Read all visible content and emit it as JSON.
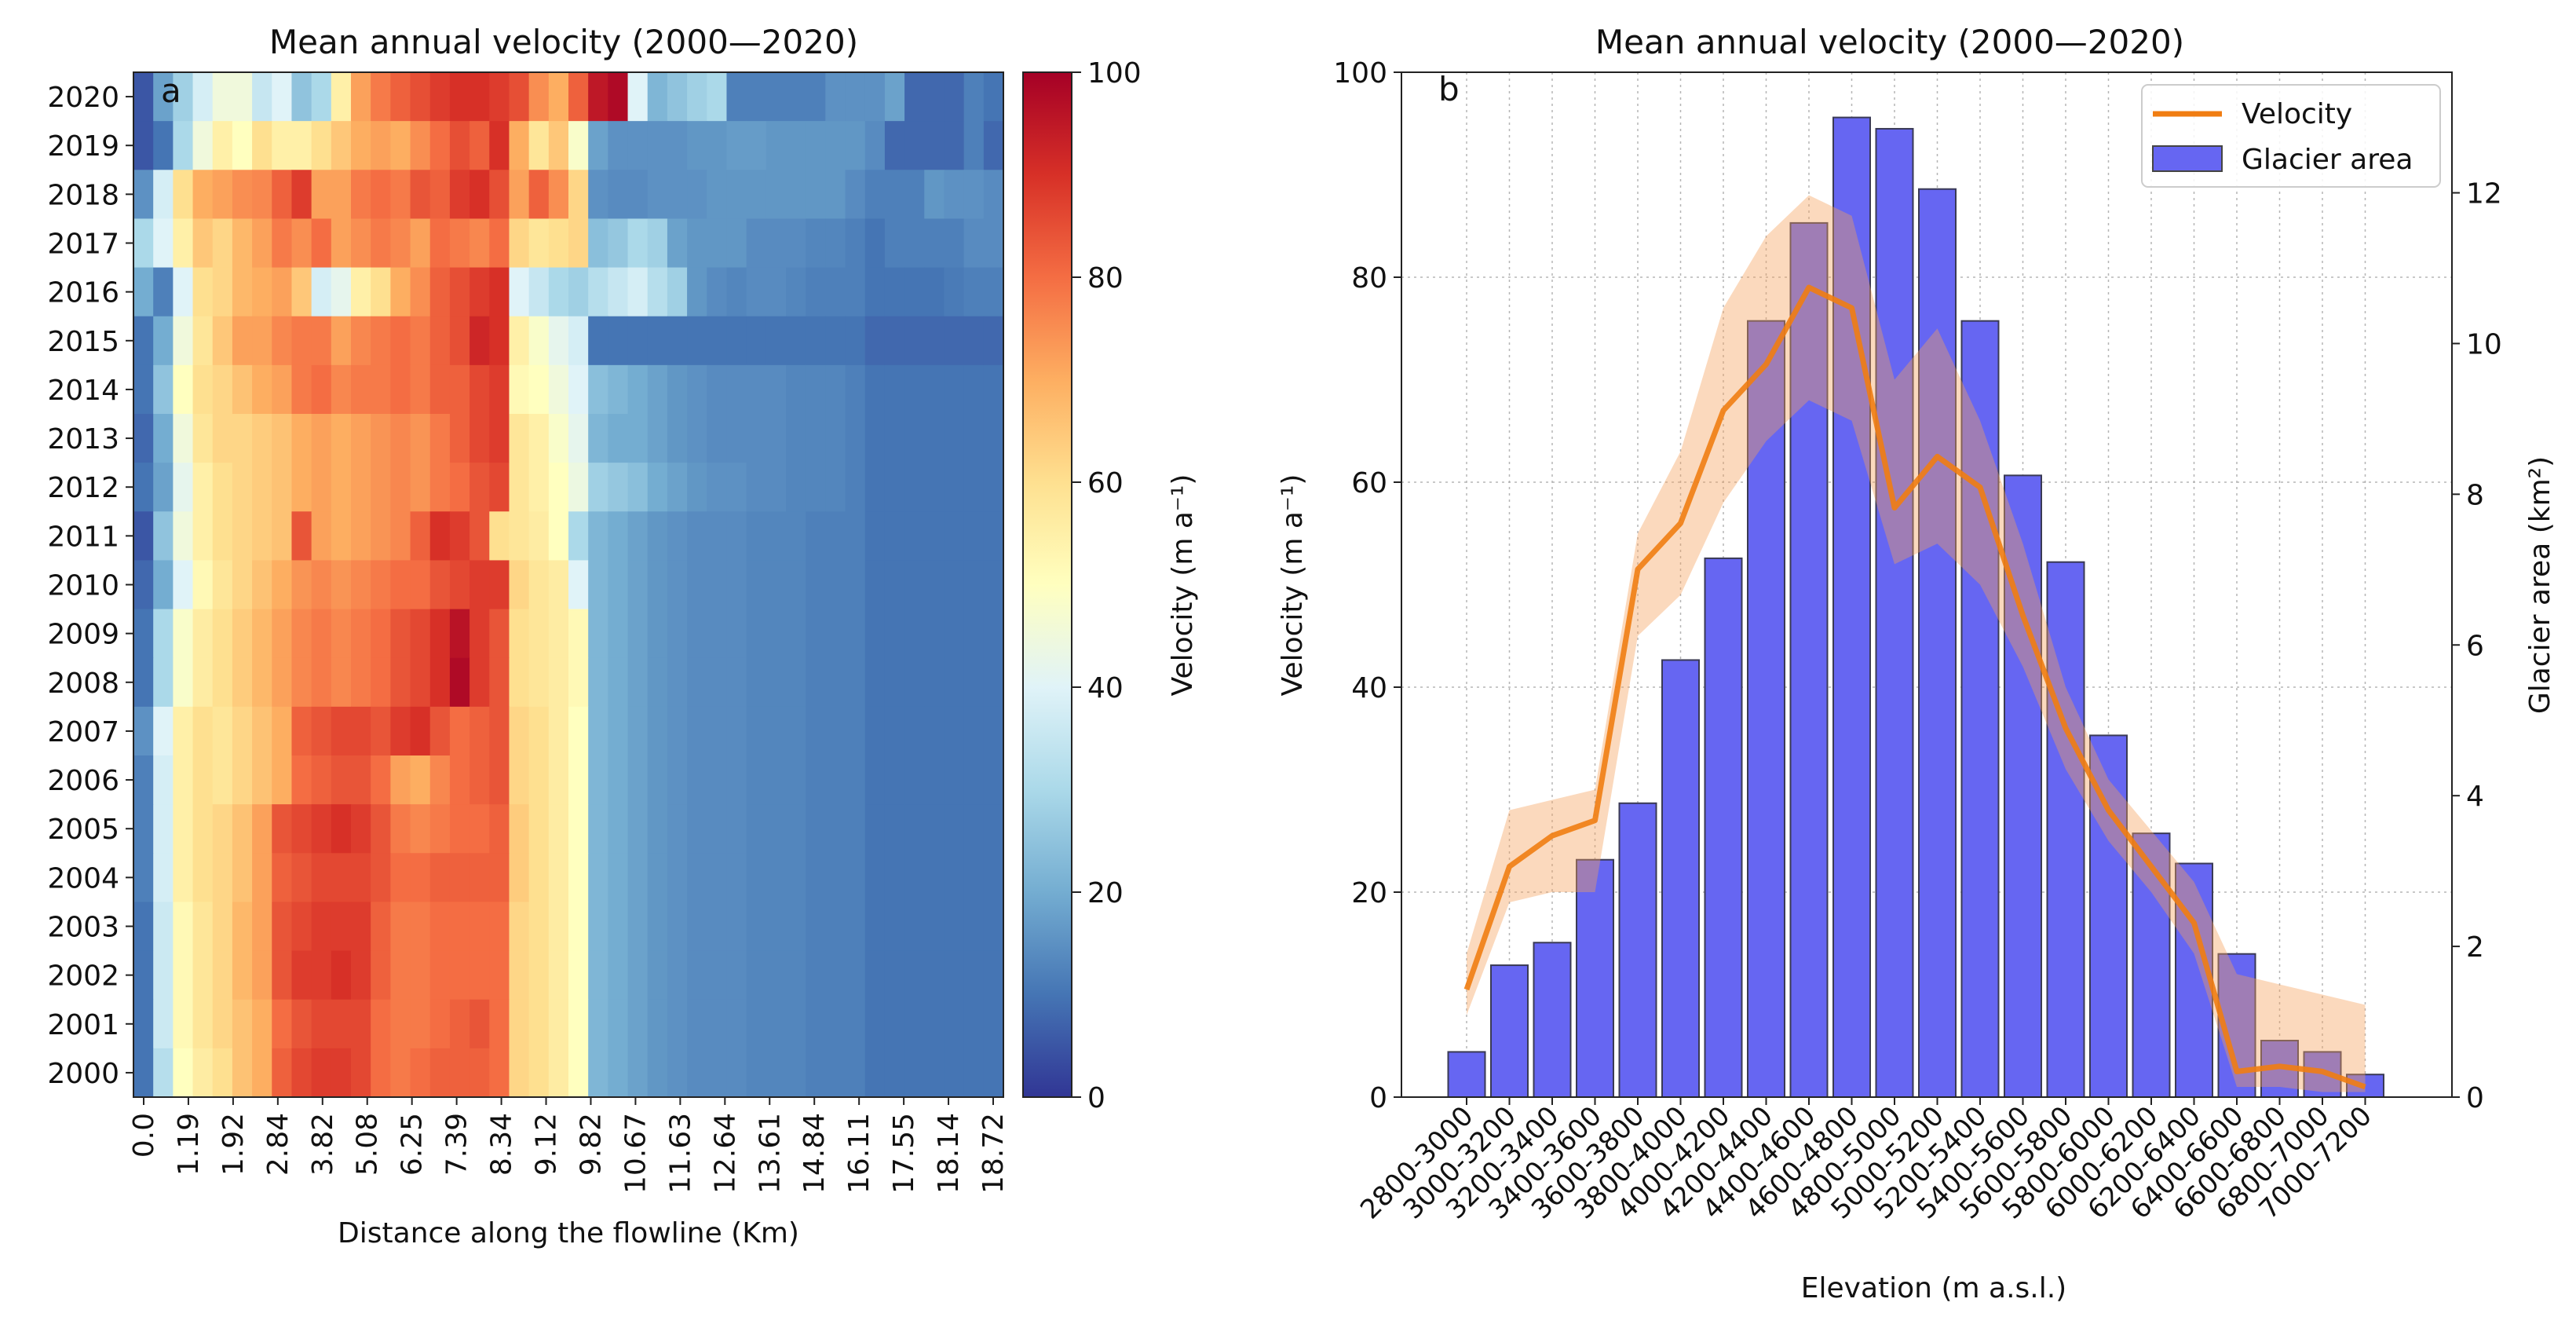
{
  "chart_data": [
    {
      "panel_label": "a",
      "type": "heatmap",
      "title": "Mean annual velocity (2000—2020)",
      "xlabel": "Distance along the flowline (Km)",
      "y_categories": [
        "2020",
        "2019",
        "2018",
        "2017",
        "2016",
        "2015",
        "2014",
        "2013",
        "2012",
        "2011",
        "2010",
        "2009",
        "2008",
        "2007",
        "2006",
        "2005",
        "2004",
        "2003",
        "2002",
        "2001",
        "2000"
      ],
      "x_tick_labels": [
        "0.0",
        "1.19",
        "1.92",
        "2.84",
        "3.82",
        "5.08",
        "6.25",
        "7.39",
        "8.34",
        "9.12",
        "9.82",
        "10.67",
        "11.63",
        "12.64",
        "13.61",
        "14.84",
        "16.11",
        "17.55",
        "18.14",
        "18.72"
      ],
      "x_bins": 44,
      "colorbar": {
        "label": "Velocity (m a⁻¹)",
        "range": [
          0,
          100
        ],
        "ticks": [
          "0",
          "20",
          "40",
          "60",
          "80",
          "100"
        ]
      },
      "values": [
        [
          5,
          18,
          28,
          38,
          45,
          45,
          35,
          40,
          25,
          30,
          55,
          72,
          78,
          82,
          85,
          88,
          90,
          90,
          88,
          85,
          75,
          70,
          82,
          95,
          98,
          40,
          22,
          25,
          28,
          30,
          12,
          12,
          12,
          12,
          12,
          15,
          15,
          15,
          18,
          8,
          8,
          8,
          12,
          10
        ],
        [
          5,
          10,
          30,
          45,
          55,
          50,
          60,
          55,
          55,
          60,
          65,
          70,
          72,
          70,
          75,
          80,
          85,
          82,
          90,
          70,
          58,
          65,
          48,
          18,
          15,
          15,
          15,
          15,
          16,
          16,
          17,
          17,
          16,
          16,
          16,
          16,
          16,
          14,
          8,
          8,
          8,
          8,
          12,
          8
        ],
        [
          15,
          38,
          60,
          70,
          72,
          75,
          76,
          82,
          88,
          72,
          72,
          78,
          80,
          78,
          84,
          82,
          88,
          90,
          85,
          72,
          82,
          75,
          62,
          15,
          14,
          14,
          15,
          15,
          15,
          16,
          16,
          16,
          16,
          16,
          16,
          16,
          14,
          12,
          12,
          12,
          16,
          15,
          15,
          14
        ],
        [
          30,
          40,
          55,
          65,
          62,
          68,
          72,
          78,
          75,
          80,
          72,
          75,
          78,
          76,
          72,
          80,
          78,
          76,
          80,
          62,
          58,
          60,
          62,
          24,
          26,
          30,
          28,
          18,
          16,
          16,
          16,
          14,
          14,
          14,
          13,
          13,
          12,
          10,
          12,
          12,
          12,
          12,
          14,
          14
        ],
        [
          20,
          12,
          40,
          60,
          62,
          68,
          70,
          72,
          65,
          38,
          42,
          55,
          60,
          70,
          75,
          82,
          85,
          88,
          90,
          40,
          35,
          30,
          28,
          32,
          35,
          38,
          32,
          28,
          16,
          14,
          13,
          14,
          14,
          13,
          12,
          12,
          12,
          10,
          10,
          10,
          10,
          11,
          12,
          12
        ],
        [
          10,
          20,
          45,
          58,
          65,
          72,
          72,
          76,
          78,
          78,
          72,
          76,
          78,
          80,
          78,
          82,
          85,
          92,
          90,
          55,
          48,
          42,
          38,
          10,
          10,
          10,
          10,
          10,
          10,
          10,
          10,
          10,
          10,
          10,
          10,
          10,
          10,
          8,
          8,
          8,
          8,
          8,
          8,
          8
        ],
        [
          10,
          25,
          50,
          60,
          62,
          66,
          70,
          72,
          78,
          80,
          76,
          78,
          78,
          80,
          78,
          82,
          82,
          86,
          88,
          52,
          50,
          45,
          40,
          24,
          22,
          20,
          18,
          16,
          15,
          14,
          14,
          14,
          14,
          13,
          13,
          13,
          12,
          10,
          10,
          10,
          10,
          10,
          10,
          10
        ],
        [
          8,
          20,
          45,
          58,
          62,
          62,
          64,
          66,
          70,
          72,
          70,
          72,
          74,
          76,
          74,
          78,
          82,
          86,
          88,
          58,
          55,
          48,
          42,
          22,
          20,
          20,
          18,
          16,
          15,
          14,
          14,
          14,
          14,
          13,
          13,
          13,
          12,
          10,
          10,
          10,
          10,
          10,
          10,
          10
        ],
        [
          10,
          18,
          42,
          55,
          60,
          62,
          64,
          66,
          70,
          72,
          70,
          72,
          74,
          76,
          74,
          78,
          80,
          84,
          86,
          58,
          55,
          50,
          44,
          28,
          26,
          24,
          20,
          18,
          16,
          15,
          15,
          14,
          14,
          13,
          13,
          13,
          12,
          10,
          10,
          10,
          10,
          10,
          10,
          10
        ],
        [
          5,
          25,
          45,
          55,
          60,
          62,
          64,
          66,
          84,
          72,
          70,
          72,
          74,
          76,
          82,
          90,
          88,
          84,
          60,
          58,
          56,
          50,
          30,
          22,
          20,
          18,
          16,
          15,
          14,
          14,
          14,
          13,
          13,
          13,
          12,
          12,
          12,
          10,
          10,
          10,
          10,
          10,
          10,
          10
        ],
        [
          8,
          20,
          40,
          52,
          58,
          62,
          66,
          70,
          74,
          76,
          74,
          76,
          78,
          80,
          80,
          84,
          86,
          88,
          88,
          62,
          58,
          56,
          40,
          22,
          20,
          18,
          16,
          15,
          14,
          14,
          14,
          13,
          13,
          13,
          12,
          12,
          12,
          10,
          10,
          10,
          10,
          10,
          10,
          10
        ],
        [
          10,
          30,
          48,
          56,
          60,
          64,
          68,
          72,
          76,
          78,
          76,
          78,
          80,
          84,
          86,
          90,
          96,
          88,
          84,
          60,
          58,
          56,
          52,
          22,
          20,
          18,
          16,
          15,
          14,
          14,
          14,
          13,
          13,
          13,
          12,
          12,
          12,
          10,
          10,
          10,
          10,
          10,
          10,
          10
        ],
        [
          10,
          30,
          48,
          56,
          60,
          64,
          68,
          72,
          76,
          78,
          76,
          78,
          80,
          84,
          86,
          90,
          98,
          88,
          84,
          60,
          58,
          56,
          52,
          22,
          20,
          18,
          16,
          15,
          14,
          14,
          14,
          13,
          13,
          13,
          12,
          12,
          12,
          10,
          10,
          10,
          10,
          10,
          10,
          10
        ],
        [
          15,
          40,
          55,
          60,
          58,
          62,
          66,
          70,
          82,
          84,
          86,
          86,
          84,
          88,
          90,
          84,
          80,
          82,
          84,
          62,
          60,
          56,
          50,
          22,
          20,
          18,
          16,
          15,
          14,
          14,
          14,
          13,
          13,
          13,
          12,
          12,
          12,
          10,
          10,
          10,
          10,
          10,
          10,
          10
        ],
        [
          12,
          38,
          55,
          60,
          58,
          62,
          66,
          70,
          80,
          82,
          84,
          84,
          80,
          72,
          70,
          76,
          80,
          82,
          84,
          62,
          60,
          56,
          50,
          22,
          20,
          18,
          16,
          15,
          14,
          14,
          14,
          13,
          13,
          13,
          12,
          12,
          12,
          10,
          10,
          10,
          10,
          10,
          10,
          10
        ],
        [
          12,
          38,
          55,
          60,
          62,
          66,
          72,
          84,
          86,
          88,
          90,
          88,
          84,
          78,
          76,
          78,
          80,
          80,
          82,
          64,
          60,
          56,
          50,
          22,
          20,
          18,
          16,
          15,
          14,
          14,
          14,
          13,
          13,
          13,
          12,
          12,
          12,
          10,
          10,
          10,
          10,
          10,
          10,
          10
        ],
        [
          12,
          38,
          55,
          60,
          62,
          66,
          72,
          82,
          84,
          86,
          86,
          86,
          84,
          80,
          80,
          82,
          82,
          82,
          82,
          64,
          60,
          56,
          50,
          22,
          20,
          18,
          16,
          15,
          14,
          14,
          14,
          13,
          13,
          13,
          12,
          12,
          12,
          10,
          10,
          10,
          10,
          10,
          10,
          10
        ],
        [
          10,
          36,
          52,
          58,
          62,
          68,
          72,
          84,
          86,
          88,
          88,
          88,
          82,
          78,
          78,
          80,
          80,
          80,
          80,
          62,
          60,
          56,
          50,
          22,
          20,
          18,
          16,
          15,
          14,
          14,
          14,
          13,
          13,
          13,
          12,
          12,
          12,
          10,
          10,
          10,
          10,
          10,
          10,
          10
        ],
        [
          10,
          36,
          52,
          58,
          62,
          68,
          72,
          84,
          88,
          88,
          90,
          88,
          82,
          78,
          78,
          80,
          80,
          80,
          80,
          62,
          60,
          56,
          50,
          22,
          20,
          18,
          16,
          15,
          14,
          14,
          14,
          13,
          13,
          13,
          12,
          12,
          12,
          10,
          10,
          10,
          10,
          10,
          10,
          10
        ],
        [
          10,
          36,
          52,
          58,
          62,
          66,
          70,
          80,
          84,
          86,
          86,
          86,
          80,
          78,
          78,
          80,
          82,
          84,
          80,
          62,
          60,
          56,
          50,
          22,
          20,
          18,
          16,
          15,
          14,
          14,
          14,
          13,
          13,
          13,
          12,
          12,
          12,
          10,
          10,
          10,
          10,
          10,
          10,
          10
        ],
        [
          10,
          32,
          50,
          56,
          60,
          66,
          70,
          82,
          86,
          88,
          88,
          86,
          80,
          78,
          80,
          82,
          82,
          82,
          80,
          62,
          60,
          56,
          50,
          22,
          20,
          18,
          16,
          15,
          14,
          14,
          14,
          13,
          13,
          13,
          12,
          12,
          12,
          10,
          10,
          10,
          10,
          10,
          10,
          10
        ]
      ]
    },
    {
      "panel_label": "b",
      "type": "bar",
      "title": "Mean annual velocity (2000—2020)",
      "xlabel": "Elevation (m a.s.l.)",
      "ylabel": "Velocity (m a⁻¹)",
      "y2label": "Glacier area (km²)",
      "ylim": [
        0,
        100
      ],
      "y2lim": [
        0,
        13.6
      ],
      "yticks": [
        "0",
        "20",
        "40",
        "60",
        "80",
        "100"
      ],
      "y2ticks": [
        "0",
        "2",
        "4",
        "6",
        "8",
        "10",
        "12"
      ],
      "grid": true,
      "legend_position": "top-right",
      "legend": [
        "Velocity",
        "Glacier area"
      ],
      "categories": [
        "2800-3000",
        "3000-3200",
        "3200-3400",
        "3400-3600",
        "3600-3800",
        "3800-4000",
        "4000-4200",
        "4200-4400",
        "4400-4600",
        "4600-4800",
        "4800-5000",
        "5000-5200",
        "5200-5400",
        "5400-5600",
        "5600-5800",
        "5800-6000",
        "6000-6200",
        "6200-6400",
        "6400-6600",
        "6600-6800",
        "6800-7000",
        "7000-7200"
      ],
      "series": [
        {
          "name": "Glacier area",
          "kind": "bar",
          "axis": "right",
          "values": [
            0.6,
            1.75,
            2.05,
            3.15,
            3.9,
            5.8,
            7.15,
            10.3,
            11.6,
            13.0,
            12.85,
            12.05,
            10.3,
            8.25,
            7.1,
            4.8,
            3.5,
            3.1,
            1.9,
            0.75,
            0.6,
            0.3
          ]
        },
        {
          "name": "Velocity",
          "kind": "line",
          "axis": "left",
          "values": [
            10.5,
            22.5,
            25.5,
            27,
            51.5,
            56,
            67,
            71.5,
            79,
            77,
            57.5,
            62.5,
            59.5,
            47,
            36,
            28,
            22.5,
            17,
            2.5,
            3,
            2.5,
            1
          ],
          "band_lower": [
            8,
            19,
            20,
            20,
            45,
            49,
            58,
            64,
            68,
            66,
            52,
            54,
            50,
            42,
            32,
            25,
            20,
            14,
            1,
            1,
            0.5,
            0.5
          ],
          "band_upper": [
            14,
            28,
            29,
            30,
            55,
            63,
            77,
            84,
            88,
            86,
            70,
            75,
            66,
            54,
            40,
            31,
            26,
            21,
            12,
            11,
            10,
            9
          ]
        }
      ]
    }
  ]
}
